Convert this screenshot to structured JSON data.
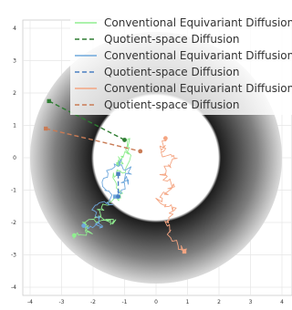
{
  "chart_data": {
    "type": "line",
    "title": "",
    "xlabel": "",
    "ylabel": "",
    "xlim": [
      -4.3,
      4.3
    ],
    "ylim": [
      -4.3,
      4.3
    ],
    "x_ticks": [
      "-4",
      "-3",
      "-2",
      "-1",
      "0",
      "1",
      "2",
      "3",
      "4"
    ],
    "y_ticks": [
      "4",
      "3",
      "2",
      "1",
      "0",
      "-1",
      "-2",
      "-3",
      "-4"
    ],
    "grid": true,
    "legend_position": "top-right",
    "annulus": {
      "inner_radius": 2.0,
      "outer_radius": 4.0,
      "shading": "radial-gray-gradient"
    },
    "series": [
      {
        "name": "Conventional Equivariant Diffusion",
        "color": "#90ee90",
        "style": "solid",
        "start": [
          -1.2,
          -0.2
        ],
        "end": [
          -2.6,
          -2.4
        ],
        "path": [
          [
            -1.2,
            -0.2
          ],
          [
            -1.0,
            0.1
          ],
          [
            -0.8,
            0.6
          ],
          [
            -0.9,
            -0.4
          ],
          [
            -1.4,
            -0.5
          ],
          [
            -1.1,
            -1.2
          ],
          [
            -1.6,
            -1.4
          ],
          [
            -1.9,
            -1.8
          ],
          [
            -1.3,
            -2.0
          ],
          [
            -2.3,
            -2.0
          ],
          [
            -2.1,
            -2.3
          ],
          [
            -2.6,
            -2.4
          ]
        ]
      },
      {
        "name": "Quotient-space Diffusion",
        "color": "#2e7d32",
        "style": "dashed",
        "start": [
          -3.4,
          1.75
        ],
        "end": [
          -1.0,
          0.55
        ]
      },
      {
        "name": "Conventional Equivariant Diffusion",
        "color": "#6fa8dc",
        "style": "solid",
        "start": [
          -1.3,
          -1.2
        ],
        "end": [
          -2.3,
          -2.1
        ],
        "path": [
          [
            -1.3,
            -1.2
          ],
          [
            -1.0,
            -0.8
          ],
          [
            -0.8,
            -0.4
          ],
          [
            -1.2,
            -0.1
          ],
          [
            -1.7,
            -0.7
          ],
          [
            -1.4,
            -1.4
          ],
          [
            -2.0,
            -1.5
          ],
          [
            -1.7,
            -2.1
          ],
          [
            -2.3,
            -2.1
          ]
        ]
      },
      {
        "name": "Quotient-space Diffusion",
        "color": "#4a7fc1",
        "style": "dashed",
        "start": [
          -1.2,
          -0.5
        ],
        "end": [
          -1.2,
          -1.2
        ]
      },
      {
        "name": "Conventional Equivariant Diffusion",
        "color": "#f4a582",
        "style": "solid",
        "start": [
          0.9,
          -2.9
        ],
        "end": [
          0.3,
          0.6
        ],
        "path": [
          [
            0.9,
            -2.9
          ],
          [
            0.5,
            -2.5
          ],
          [
            0.3,
            -2.0
          ],
          [
            0.6,
            -1.6
          ],
          [
            0.1,
            -1.3
          ],
          [
            0.5,
            -0.9
          ],
          [
            0.2,
            -0.5
          ],
          [
            0.6,
            -0.1
          ],
          [
            0.2,
            0.2
          ],
          [
            0.3,
            0.6
          ]
        ]
      },
      {
        "name": "Quotient-space Diffusion",
        "color": "#c97b55",
        "style": "dashed",
        "start": [
          -3.5,
          0.9
        ],
        "end": [
          -0.5,
          0.2
        ]
      }
    ]
  }
}
